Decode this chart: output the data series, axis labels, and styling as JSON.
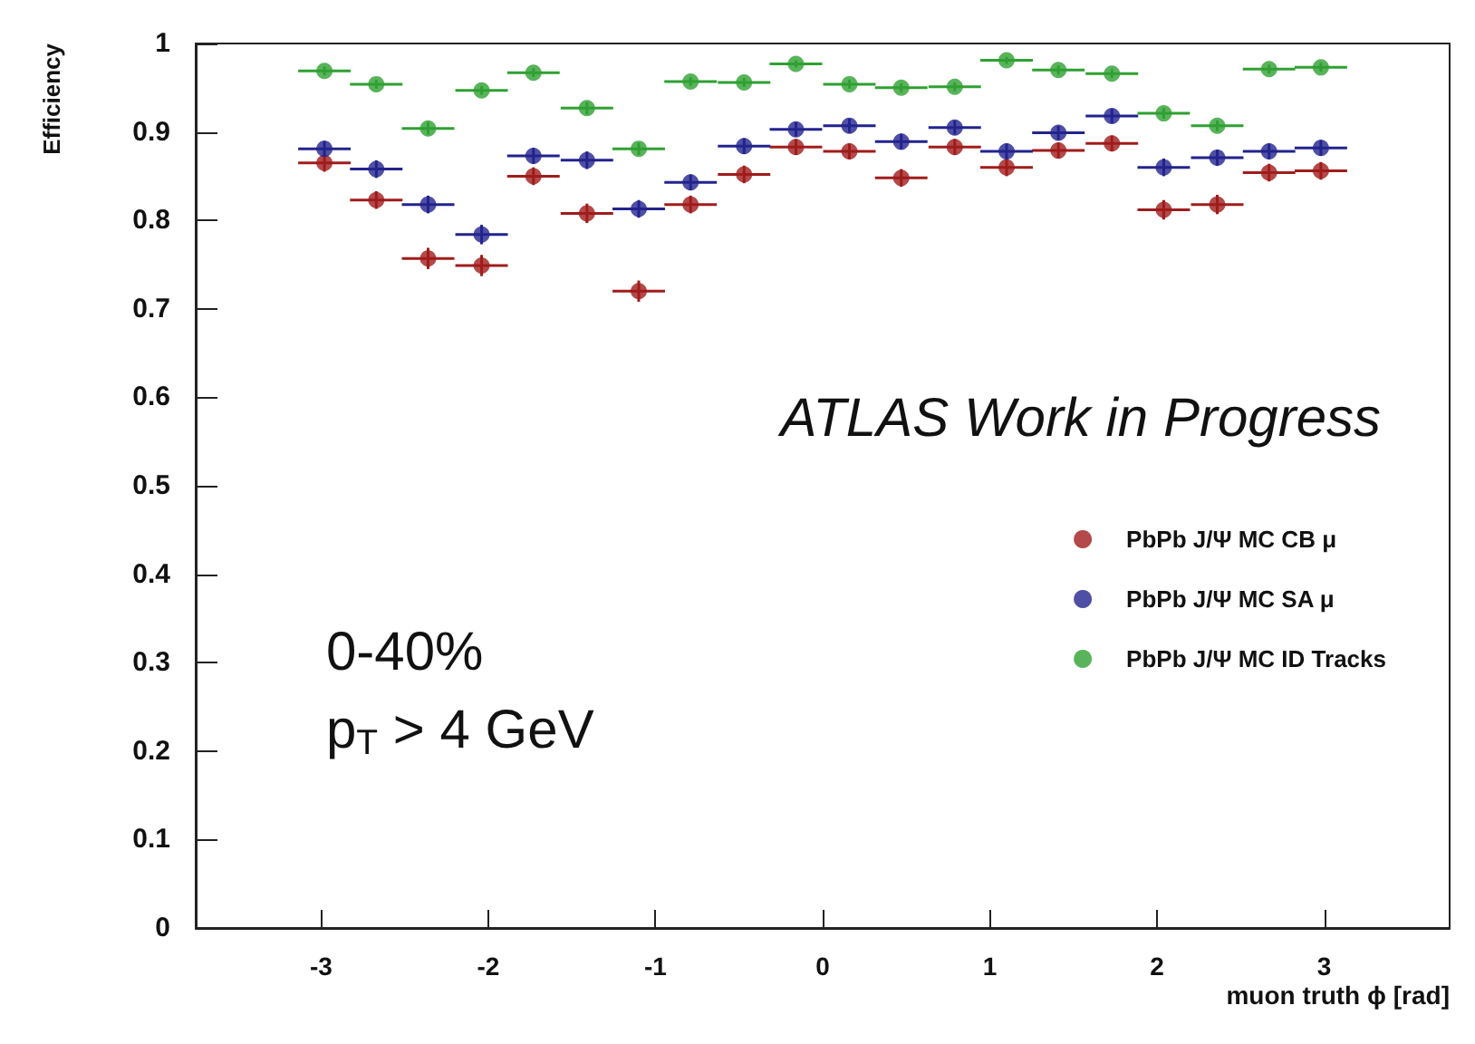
{
  "chart_data": {
    "type": "scatter",
    "xlabel": "muon truth ϕ [rad]",
    "ylabel": "Efficiency",
    "annotations": [
      "ATLAS Work in Progress",
      "0-40%",
      "p$_{T}$ > 4 GeV"
    ],
    "x": [
      -2.98,
      -2.67,
      -2.36,
      -2.04,
      -1.73,
      -1.41,
      -1.1,
      -0.79,
      -0.47,
      -0.16,
      0.16,
      0.47,
      0.79,
      1.1,
      1.41,
      1.73,
      2.04,
      2.36,
      2.67,
      2.98
    ],
    "series": [
      {
        "name": "PbPb J/Ψ MC CB μ",
        "color": "#a01c1c",
        "values": [
          0.865,
          0.823,
          0.757,
          0.749,
          0.85,
          0.808,
          0.72,
          0.818,
          0.852,
          0.883,
          0.878,
          0.848,
          0.883,
          0.86,
          0.879,
          0.887,
          0.812,
          0.818,
          0.854,
          0.856
        ],
        "errors": [
          0.01,
          0.01,
          0.012,
          0.012,
          0.01,
          0.011,
          0.012,
          0.01,
          0.01,
          0.009,
          0.009,
          0.01,
          0.009,
          0.01,
          0.009,
          0.009,
          0.011,
          0.011,
          0.01,
          0.01
        ],
        "xerrors": [
          0.157,
          0.157,
          0.157,
          0.157,
          0.157,
          0.157,
          0.157,
          0.157,
          0.157,
          0.157,
          0.157,
          0.157,
          0.157,
          0.157,
          0.157,
          0.157,
          0.157,
          0.157,
          0.157,
          0.157
        ]
      },
      {
        "name": "PbPb J/Ψ MC SA μ",
        "color": "#23238e",
        "values": [
          0.881,
          0.858,
          0.818,
          0.784,
          0.873,
          0.868,
          0.813,
          0.843,
          0.884,
          0.903,
          0.907,
          0.889,
          0.905,
          0.878,
          0.899,
          0.918,
          0.86,
          0.871,
          0.878,
          0.882
        ],
        "errors": [
          0.009,
          0.01,
          0.01,
          0.011,
          0.009,
          0.01,
          0.01,
          0.009,
          0.009,
          0.008,
          0.008,
          0.009,
          0.008,
          0.009,
          0.008,
          0.008,
          0.01,
          0.009,
          0.009,
          0.009
        ],
        "xerrors": [
          0.157,
          0.157,
          0.157,
          0.157,
          0.157,
          0.157,
          0.157,
          0.157,
          0.157,
          0.157,
          0.157,
          0.157,
          0.157,
          0.157,
          0.157,
          0.157,
          0.157,
          0.157,
          0.157,
          0.157
        ]
      },
      {
        "name": "PbPb J/Ψ MC ID Tracks",
        "color": "#2fa032",
        "values": [
          0.969,
          0.954,
          0.904,
          0.947,
          0.967,
          0.927,
          0.881,
          0.957,
          0.956,
          0.977,
          0.954,
          0.95,
          0.951,
          0.981,
          0.97,
          0.966,
          0.921,
          0.907,
          0.971,
          0.973
        ],
        "errors": [
          0.005,
          0.005,
          0.007,
          0.005,
          0.005,
          0.007,
          0.007,
          0.005,
          0.005,
          0.004,
          0.005,
          0.005,
          0.005,
          0.004,
          0.005,
          0.005,
          0.006,
          0.006,
          0.005,
          0.005
        ],
        "xerrors": [
          0.157,
          0.157,
          0.157,
          0.157,
          0.157,
          0.157,
          0.157,
          0.157,
          0.157,
          0.157,
          0.157,
          0.157,
          0.157,
          0.157,
          0.157,
          0.157,
          0.157,
          0.157,
          0.157,
          0.157
        ]
      }
    ],
    "xlim": [
      -3.75,
      3.75
    ],
    "xticks": [
      -3,
      -2,
      -1,
      0,
      1,
      2,
      3
    ],
    "ylim": [
      0,
      1
    ],
    "yticks": [
      0,
      0.1,
      0.2,
      0.3,
      0.4,
      0.5,
      0.6,
      0.7,
      0.8,
      0.9,
      1
    ],
    "grid": false,
    "legend": "right",
    "marker": "circle"
  }
}
